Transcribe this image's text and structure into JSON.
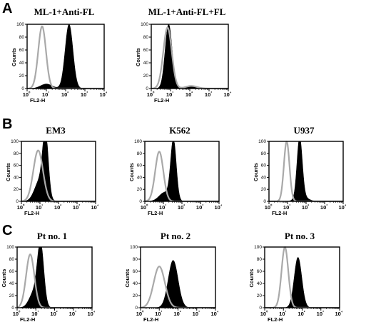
{
  "panel_labels": [
    "A",
    "B",
    "C"
  ],
  "chart_data": [
    {
      "type": "area",
      "panel": "A",
      "title": "ML-1+Anti-FL",
      "xlabel": "FL2-H",
      "ylabel": "Counts",
      "xscale": "log",
      "xlim": [
        1,
        10000
      ],
      "ylim": [
        0,
        100
      ],
      "yticks": [
        0,
        20,
        40,
        60,
        80,
        100
      ],
      "xticks": [
        "10⁰",
        "10¹",
        "10²",
        "10³",
        "10⁴"
      ],
      "series": [
        {
          "style": "gray-outline",
          "peaks": [
            {
              "center": 6,
              "height": 97,
              "width": 0.2
            }
          ]
        },
        {
          "style": "black-filled",
          "peaks": [
            {
              "center": 150,
              "height": 100,
              "width": 0.2
            },
            {
              "center": 10,
              "height": 7,
              "width": 0.3
            }
          ]
        }
      ]
    },
    {
      "type": "area",
      "panel": "A",
      "title": "ML-1+Anti-FL+FL",
      "xlabel": "FL2-H",
      "ylabel": "Counts",
      "xscale": "log",
      "xlim": [
        1,
        10000
      ],
      "ylim": [
        0,
        100
      ],
      "yticks": [
        0,
        20,
        40,
        60,
        80,
        100
      ],
      "xticks": [
        "10⁰",
        "10¹",
        "10²",
        "10³",
        "10⁴"
      ],
      "series": [
        {
          "style": "gray-outline",
          "peaks": [
            {
              "center": 7,
              "height": 95,
              "width": 0.22
            },
            {
              "center": 120,
              "height": 4,
              "width": 0.3
            }
          ]
        },
        {
          "style": "black-filled",
          "peaks": [
            {
              "center": 8,
              "height": 100,
              "width": 0.18
            },
            {
              "center": 150,
              "height": 3,
              "width": 0.3
            }
          ]
        }
      ]
    },
    {
      "type": "area",
      "panel": "B",
      "title": "EM3",
      "xlabel": "FL2-H",
      "ylabel": "Counts",
      "xscale": "log",
      "xlim": [
        1,
        10000
      ],
      "ylim": [
        0,
        100
      ],
      "yticks": [
        0,
        20,
        40,
        60,
        80,
        100
      ],
      "xticks": [
        "10⁰",
        "10¹",
        "10²",
        "10³",
        "10⁴"
      ],
      "series": [
        {
          "style": "gray-outline",
          "peaks": [
            {
              "center": 8,
              "height": 85,
              "width": 0.26
            }
          ]
        },
        {
          "style": "black-filled",
          "peaks": [
            {
              "center": 20,
              "height": 100,
              "width": 0.15
            },
            {
              "center": 10,
              "height": 35,
              "width": 0.28
            }
          ]
        }
      ]
    },
    {
      "type": "area",
      "panel": "B",
      "title": "K562",
      "xlabel": "FL2-H",
      "ylabel": "Counts",
      "xscale": "log",
      "xlim": [
        1,
        10000
      ],
      "ylim": [
        0,
        100
      ],
      "yticks": [
        0,
        20,
        40,
        60,
        80,
        100
      ],
      "xticks": [
        "10⁰",
        "10¹",
        "10²",
        "10³",
        "10⁴"
      ],
      "series": [
        {
          "style": "gray-outline",
          "peaks": [
            {
              "center": 6,
              "height": 83,
              "width": 0.22
            }
          ]
        },
        {
          "style": "black-filled",
          "peaks": [
            {
              "center": 35,
              "height": 100,
              "width": 0.15
            },
            {
              "center": 12,
              "height": 15,
              "width": 0.3
            }
          ]
        }
      ]
    },
    {
      "type": "area",
      "panel": "B",
      "title": "U937",
      "xlabel": "FL2-H",
      "ylabel": "Counts",
      "xscale": "log",
      "xlim": [
        1,
        10000
      ],
      "ylim": [
        0,
        100
      ],
      "yticks": [
        0,
        20,
        40,
        60,
        80,
        100
      ],
      "xticks": [
        "10⁰",
        "10¹",
        "10²",
        "10³",
        "10⁴"
      ],
      "series": [
        {
          "style": "gray-outline",
          "peaks": [
            {
              "center": 9,
              "height": 100,
              "width": 0.15
            }
          ]
        },
        {
          "style": "black-filled",
          "peaks": [
            {
              "center": 45,
              "height": 100,
              "width": 0.14
            },
            {
              "center": 60,
              "height": 8,
              "width": 0.3
            }
          ]
        }
      ]
    },
    {
      "type": "area",
      "panel": "C",
      "title": "Pt no. 1",
      "xlabel": "FL2-H",
      "ylabel": "Counts",
      "xscale": "log",
      "xlim": [
        1,
        10000
      ],
      "ylim": [
        0,
        100
      ],
      "yticks": [
        0,
        20,
        40,
        60,
        80,
        100
      ],
      "xticks": [
        "10⁰",
        "10¹",
        "10²",
        "10³",
        "10⁴"
      ],
      "series": [
        {
          "style": "gray-outline",
          "peaks": [
            {
              "center": 5,
              "height": 88,
              "width": 0.22
            }
          ]
        },
        {
          "style": "black-filled",
          "peaks": [
            {
              "center": 18,
              "height": 100,
              "width": 0.17
            },
            {
              "center": 8,
              "height": 25,
              "width": 0.25
            }
          ]
        }
      ]
    },
    {
      "type": "area",
      "panel": "C",
      "title": "Pt no. 2",
      "xlabel": "FL2-H",
      "ylabel": "Counts",
      "xscale": "log",
      "xlim": [
        1,
        10000
      ],
      "ylim": [
        0,
        100
      ],
      "yticks": [
        0,
        20,
        40,
        60,
        80,
        100
      ],
      "xticks": [
        "10⁰",
        "10¹",
        "10²",
        "10³",
        "10⁴"
      ],
      "series": [
        {
          "style": "gray-outline",
          "peaks": [
            {
              "center": 10,
              "height": 68,
              "width": 0.3
            }
          ]
        },
        {
          "style": "black-filled",
          "peaks": [
            {
              "center": 55,
              "height": 78,
              "width": 0.26
            }
          ]
        }
      ]
    },
    {
      "type": "area",
      "panel": "C",
      "title": "Pt no. 3",
      "xlabel": "FL2-H",
      "ylabel": "Counts",
      "xscale": "log",
      "xlim": [
        1,
        10000
      ],
      "ylim": [
        0,
        100
      ],
      "yticks": [
        0,
        20,
        40,
        60,
        80,
        100
      ],
      "xticks": [
        "10⁰",
        "10¹",
        "10²",
        "10³",
        "10⁴"
      ],
      "series": [
        {
          "style": "gray-outline",
          "peaks": [
            {
              "center": 12,
              "height": 100,
              "width": 0.18
            }
          ]
        },
        {
          "style": "black-filled",
          "peaks": [
            {
              "center": 60,
              "height": 83,
              "width": 0.2
            }
          ]
        }
      ]
    }
  ]
}
